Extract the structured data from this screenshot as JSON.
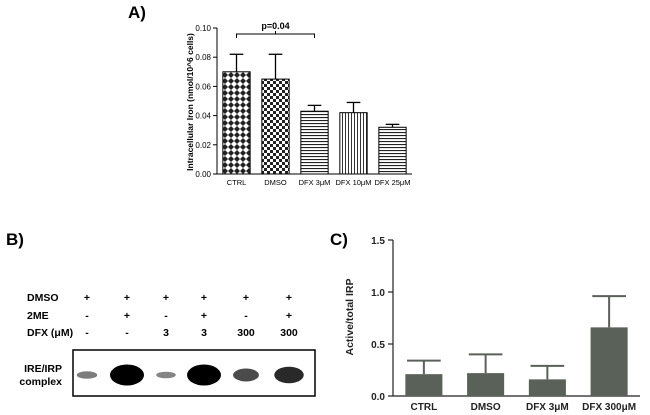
{
  "panels": {
    "a": "A)",
    "b": "B)",
    "c": "C)"
  },
  "chart_data": [
    {
      "type": "bar",
      "panel": "A",
      "title": "",
      "xlabel": "",
      "ylabel": "Intracellular Iron (nmol/10^6 cells)",
      "categories": [
        "CTRL",
        "DMSO",
        "DFX 3μM",
        "DFX 10μM",
        "DFX 25μM"
      ],
      "values": [
        0.07,
        0.065,
        0.043,
        0.042,
        0.032
      ],
      "errors": [
        0.012,
        0.017,
        0.004,
        0.007,
        0.002
      ],
      "patterns": [
        "diamond",
        "checker",
        "hlines",
        "vlines",
        "hlines"
      ],
      "ylim": [
        0,
        0.1
      ],
      "yticks": [
        "0.00",
        "0.02",
        "0.04",
        "0.06",
        "0.08",
        "0.10"
      ],
      "annotation": {
        "text": "p=0.04",
        "from": 0,
        "to": 2
      }
    },
    {
      "type": "bar",
      "panel": "C",
      "title": "",
      "xlabel": "",
      "ylabel": "Active/total IRP",
      "categories": [
        "CTRL",
        "DMSO",
        "DFX 3μM",
        "DFX 300μM"
      ],
      "values": [
        0.21,
        0.22,
        0.16,
        0.66
      ],
      "errors": [
        0.13,
        0.18,
        0.13,
        0.3
      ],
      "color": "#5a6158",
      "ylim": [
        0,
        1.5
      ],
      "yticks": [
        "0.0",
        "0.5",
        "1.0",
        "1.5"
      ]
    }
  ],
  "blot": {
    "rows": [
      {
        "label": "DMSO",
        "cells": [
          "+",
          "+",
          "+",
          "+",
          "+",
          "+"
        ]
      },
      {
        "label": "2ME",
        "cells": [
          "-",
          "+",
          "-",
          "+",
          "-",
          "+"
        ]
      },
      {
        "label": "DFX (μM)",
        "cells": [
          "-",
          "-",
          "3",
          "3",
          "300",
          "300"
        ]
      }
    ],
    "band_label_1": "IRE/IRP",
    "band_label_2": "complex",
    "band_intensities": [
      0.25,
      1.0,
      0.2,
      1.0,
      0.55,
      0.75
    ]
  }
}
